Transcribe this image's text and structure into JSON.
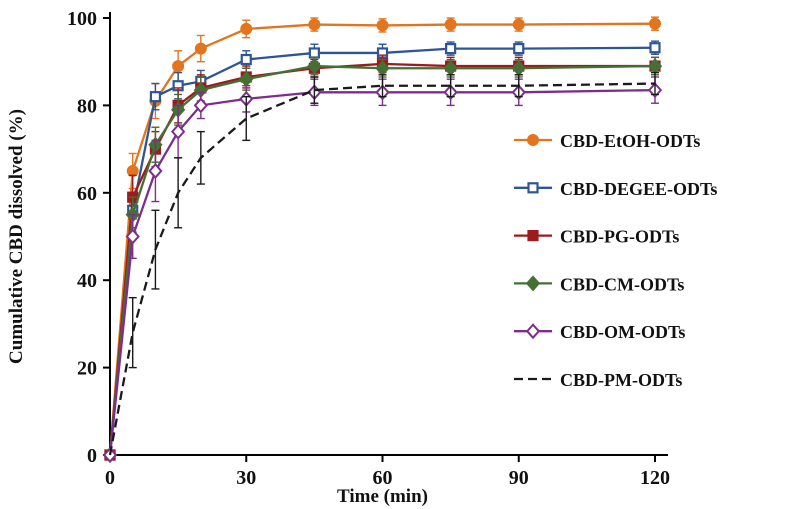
{
  "figure": {
    "background": "#ffffff"
  },
  "chart_data": {
    "type": "line",
    "title": "",
    "xlabel": "Time (min)",
    "ylabel": "Cumulative CBD dissolved (%)",
    "x": [
      0,
      5,
      10,
      15,
      20,
      30,
      45,
      60,
      75,
      90,
      120
    ],
    "xlim": [
      0,
      120
    ],
    "ylim": [
      0,
      100
    ],
    "xticks": [
      0,
      30,
      60,
      90,
      120
    ],
    "yticks": [
      0,
      20,
      40,
      60,
      80,
      100
    ],
    "grid": false,
    "legend_position": "right",
    "series": [
      {
        "name": "CBD-EtOH-ODTs",
        "color": "#E2751D",
        "marker": "circle",
        "fill": "solid",
        "line": "solid",
        "values": [
          0,
          65,
          81,
          89,
          93,
          97.5,
          98.5,
          98.3,
          98.5,
          98.5,
          98.7
        ],
        "errors": [
          0,
          4,
          4,
          3.5,
          3,
          2,
          1.5,
          1.5,
          1.5,
          1.5,
          1.5
        ]
      },
      {
        "name": "CBD-DEGEE-ODTs",
        "color": "#2E5596",
        "marker": "square",
        "fill": "open",
        "line": "solid",
        "values": [
          0,
          56,
          82,
          84.5,
          85.5,
          90.5,
          92,
          92,
          93,
          93,
          93.2
        ],
        "errors": [
          0,
          4,
          3,
          3,
          2.5,
          2,
          2,
          2,
          1.5,
          1.5,
          1.5
        ]
      },
      {
        "name": "CBD-PG-ODTs",
        "color": "#9C1B1F",
        "marker": "square",
        "fill": "solid",
        "line": "solid",
        "values": [
          0,
          59,
          70,
          80,
          84,
          86.5,
          88.5,
          89.5,
          89,
          89,
          89
        ],
        "errors": [
          0,
          5,
          4,
          4,
          3,
          2.5,
          2,
          2,
          2,
          2,
          2
        ]
      },
      {
        "name": "CBD-CM-ODTs",
        "color": "#456F33",
        "marker": "diamond",
        "fill": "solid",
        "line": "solid",
        "values": [
          0,
          55,
          71,
          79,
          83.5,
          86,
          89,
          88.5,
          88.5,
          88.5,
          89
        ],
        "errors": [
          0,
          4,
          4,
          3.5,
          3,
          2.5,
          2,
          2,
          2,
          2,
          2
        ]
      },
      {
        "name": "CBD-OM-ODTs",
        "color": "#7D2E8D",
        "marker": "diamond",
        "fill": "open",
        "line": "solid",
        "values": [
          0,
          50,
          65,
          74,
          80,
          81.5,
          83,
          83,
          83,
          83,
          83.5
        ],
        "errors": [
          0,
          5,
          7,
          6,
          3,
          3,
          3,
          3,
          3,
          3,
          3
        ]
      },
      {
        "name": "CBD-PM-ODTs",
        "color": "#1A1A1A",
        "marker": "none",
        "fill": "none",
        "line": "dashed",
        "values": [
          0,
          28,
          47,
          60,
          68,
          77,
          83.5,
          84.5,
          84.5,
          84.5,
          85
        ],
        "errors": [
          0,
          8,
          9,
          8,
          6,
          5,
          3,
          2.5,
          2.5,
          2.5,
          2.5
        ]
      }
    ]
  }
}
